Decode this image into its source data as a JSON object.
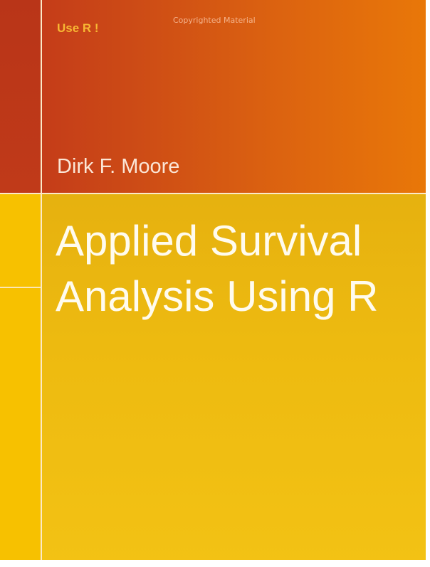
{
  "cover": {
    "series": "Use R !",
    "watermark": "Copyrighted Material",
    "author": "Dirk F. Moore",
    "title_lines": [
      "Applied Survival",
      "Analysis Using R"
    ]
  },
  "colors": {
    "top_band": "#d55512",
    "bottom_band": "#edba10",
    "left_strip_bottom": "#f7c100",
    "divider": "#fbe9c8",
    "title_text": "#fffbee",
    "series_text": "#f7b733"
  }
}
